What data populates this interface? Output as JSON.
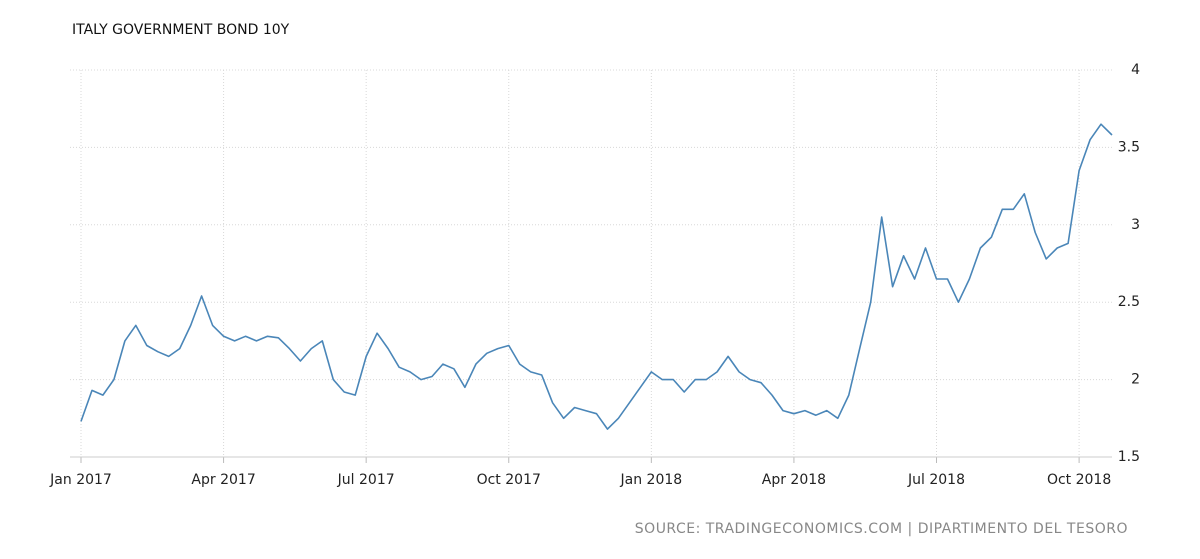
{
  "chart_data": {
    "type": "line",
    "title": "ITALY GOVERNMENT BOND 10Y",
    "source": "SOURCE: TRADINGECONOMICS.COM | DIPARTIMENTO DEL TESORO",
    "categories": [
      "Jan 2017",
      null,
      null,
      null,
      null,
      null,
      null,
      null,
      null,
      null,
      null,
      null,
      null,
      "Apr 2017",
      null,
      null,
      null,
      null,
      null,
      null,
      null,
      null,
      null,
      null,
      null,
      null,
      "Jul 2017",
      null,
      null,
      null,
      null,
      null,
      null,
      null,
      null,
      null,
      null,
      null,
      null,
      "Oct 2017",
      null,
      null,
      null,
      null,
      null,
      null,
      null,
      null,
      null,
      null,
      null,
      null,
      "Jan 2018",
      null,
      null,
      null,
      null,
      null,
      null,
      null,
      null,
      null,
      null,
      null,
      null,
      "Apr 2018",
      null,
      null,
      null,
      null,
      null,
      null,
      null,
      null,
      null,
      null,
      null,
      null,
      "Jul 2018",
      null,
      null,
      null,
      null,
      null,
      null,
      null,
      null,
      null,
      null,
      null,
      null,
      "Oct 2018",
      null,
      null,
      null
    ],
    "values": [
      1.73,
      1.93,
      1.9,
      2.0,
      2.25,
      2.35,
      2.22,
      2.18,
      2.15,
      2.2,
      2.35,
      2.54,
      2.35,
      2.28,
      2.25,
      2.28,
      2.25,
      2.28,
      2.27,
      2.2,
      2.12,
      2.2,
      2.25,
      2.0,
      1.92,
      1.9,
      2.15,
      2.3,
      2.2,
      2.08,
      2.05,
      2.0,
      2.02,
      2.1,
      2.07,
      1.95,
      2.1,
      2.17,
      2.2,
      2.22,
      2.1,
      2.05,
      2.03,
      1.85,
      1.75,
      1.82,
      1.8,
      1.78,
      1.68,
      1.75,
      1.85,
      1.95,
      2.05,
      2.0,
      2.0,
      1.92,
      2.0,
      2.0,
      2.05,
      2.15,
      2.05,
      2.0,
      1.98,
      1.9,
      1.8,
      1.78,
      1.8,
      1.77,
      1.8,
      1.75,
      1.9,
      2.2,
      2.5,
      3.05,
      2.6,
      2.8,
      2.65,
      2.85,
      2.65,
      2.65,
      2.5,
      2.65,
      2.85,
      2.92,
      3.1,
      3.1,
      3.2,
      2.95,
      2.78,
      2.85,
      2.88,
      3.35,
      3.55,
      3.65,
      3.58
    ],
    "color": "#4a86b8",
    "ylim": [
      1.5,
      4
    ],
    "yticks": [
      1.5,
      2,
      2.5,
      3,
      3.5,
      4
    ],
    "grid": true
  }
}
